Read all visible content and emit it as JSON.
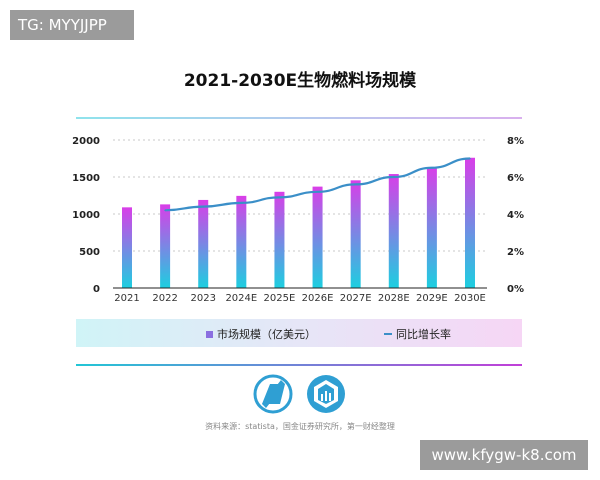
{
  "watermarks": {
    "top_left": "TG: MYYJJPP",
    "bottom_right": "www.kfygw-k8.com"
  },
  "chart_data": {
    "type": "bar+line",
    "title": "2021-2030E生物燃料场规模",
    "categories": [
      "2021",
      "2022",
      "2023",
      "2024E",
      "2025E",
      "2026E",
      "2027E",
      "2028E",
      "2029E",
      "2030E"
    ],
    "series": [
      {
        "name": "市场规模（亿美元）",
        "type": "bar",
        "axis": "left",
        "values": [
          1090,
          1130,
          1190,
          1245,
          1300,
          1370,
          1455,
          1540,
          1635,
          1760
        ]
      },
      {
        "name": "同比增长率",
        "type": "line",
        "axis": "right",
        "values": [
          null,
          4.2,
          4.4,
          4.6,
          4.9,
          5.2,
          5.6,
          6.0,
          6.5,
          7.0
        ]
      }
    ],
    "y_left": {
      "ylim": [
        0,
        2000
      ],
      "ticks": [
        "0",
        "500",
        "1000",
        "1500",
        "2000"
      ]
    },
    "y_right": {
      "ylim": [
        0,
        8
      ],
      "ticks": [
        "0%",
        "2%",
        "4%",
        "6%",
        "8%"
      ]
    },
    "grid": true,
    "legend_position": "bottom",
    "colors": {
      "bar_top": "#d93ee8",
      "bar_bottom": "#1ccfe0",
      "line": "#3b8fc8"
    }
  },
  "source": "资料来源：statista，国金证券研究所，第一财经整理"
}
